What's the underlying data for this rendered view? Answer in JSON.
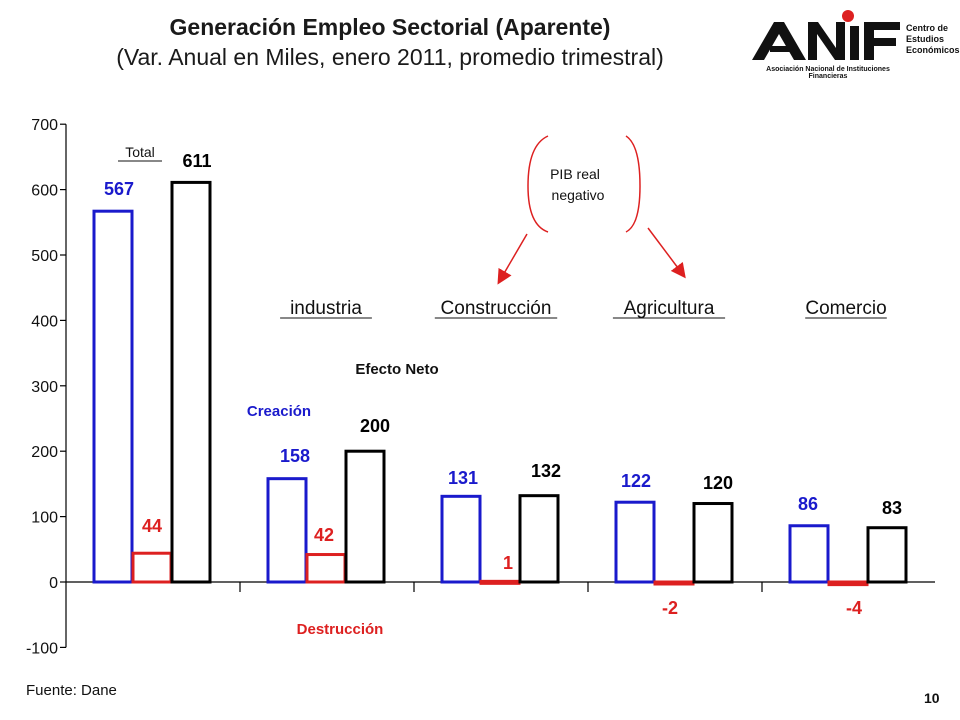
{
  "title": "Generación Empleo Sectorial (Aparente)",
  "subtitle": "(Var. Anual en Miles, enero 2011, promedio trimestral)",
  "logo": {
    "name": "ANIF",
    "subtitle": "Asociación Nacional de Instituciones Financieras",
    "side": [
      "Centro de",
      "Estudios",
      "Económicos"
    ]
  },
  "source": "Fuente: Dane",
  "page_number": "10",
  "colors": {
    "creacion": "#1a1acc",
    "destruccion": "#dd2020",
    "neto": "#000000",
    "annotation": "#dd2020"
  },
  "chart_data": {
    "type": "bar",
    "ylim": [
      -100,
      700
    ],
    "yticks": [
      -100,
      0,
      100,
      200,
      300,
      400,
      500,
      600,
      700
    ],
    "grid": false,
    "categories": [
      "Total",
      "industria",
      "Construcción",
      "Agricultura",
      "Comercio"
    ],
    "series": [
      {
        "name": "Creación",
        "values": [
          567,
          158,
          131,
          122,
          86
        ]
      },
      {
        "name": "Destrucción",
        "values": [
          44,
          42,
          1,
          -2,
          -4
        ]
      },
      {
        "name": "Efecto Neto",
        "values": [
          611,
          200,
          132,
          120,
          83
        ]
      }
    ],
    "annotation": {
      "text_lines": [
        "PIB real",
        "negativo"
      ],
      "targets": [
        "Construcción",
        "Agricultura"
      ]
    }
  }
}
